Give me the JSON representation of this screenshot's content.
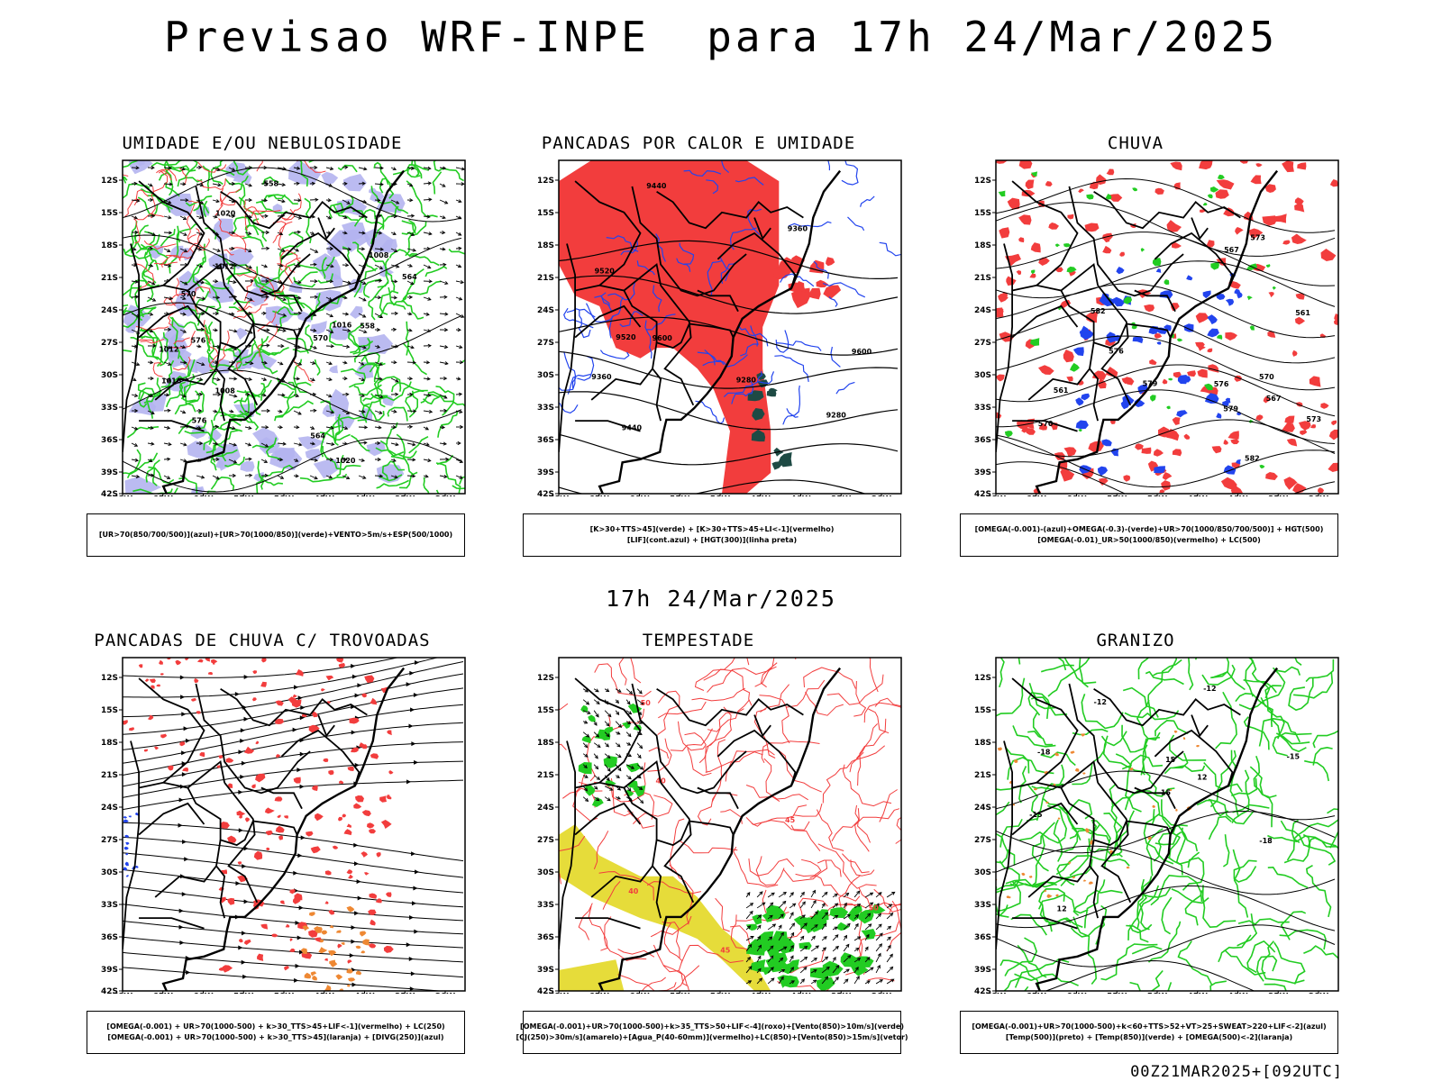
{
  "header": {
    "title": "Previsao WRF-INPE  para 17h 24/Mar/2025",
    "mid_date": "17h 24/Mar/2025",
    "run_label": "00Z21MAR2025+[092UTC]"
  },
  "axes": {
    "lat_labels": [
      "12S",
      "15S",
      "18S",
      "21S",
      "24S",
      "27S",
      "30S",
      "33S",
      "36S",
      "39S",
      "42S"
    ],
    "lon_labels": [
      "70W",
      "65W",
      "60W",
      "55W",
      "50W",
      "45W",
      "40W",
      "35W",
      "30W"
    ]
  },
  "colors": {
    "red": "#f23d3d",
    "green": "#22cc22",
    "blue": "#2244ee",
    "lavender": "#b4b4f0",
    "yellow": "#e6dc3a",
    "orange": "#ee8833",
    "darkteal": "#1e4a44",
    "purple": "#aa33cc"
  },
  "panels": [
    {
      "title": "UMIDADE E/OU NEBULOSIDADE",
      "legend": [
        "[UR>70(850/700/500)](azul)+[UR>70(1000/850)](verde)+VENTO>5m/s+ESP(500/1000)"
      ],
      "contour_labels": [
        "1008",
        "1012",
        "1016",
        "1020",
        "576",
        "570",
        "564",
        "558"
      ]
    },
    {
      "title": "PANCADAS POR CALOR E UMIDADE",
      "legend": [
        "[K>30+TTS>45](verde) + [K>30+TTS>45+LI<-1](vermelho)",
        "[LIF](cont.azul) + [HGT(300)](linha preta)"
      ],
      "contour_labels": [
        "9600",
        "9520",
        "9440",
        "9360",
        "9280"
      ]
    },
    {
      "title": "CHUVA",
      "legend": [
        "[OMEGA(-0.001)-(azul)+OMEGA(-0.3)-(verde)+UR>70(1000/850/700/500)] + HGT(500)",
        "[OMEGA(-0.01)_UR>50(1000/850)(vermelho) + LC(500)"
      ],
      "contour_labels": [
        "582",
        "579",
        "576",
        "573",
        "570",
        "567",
        "561"
      ]
    },
    {
      "title": "PANCADAS DE CHUVA C/ TROVOADAS",
      "legend": [
        "[OMEGA(-0.001) + UR>70(1000-500) + k>30_TTS>45+LIF<-1](vermelho) + LC(250)",
        "[OMEGA(-0.001) + UR>70(1000-500) + k>30_TTS>45](laranja) + [DIVG(250)](azul)"
      ],
      "contour_labels": []
    },
    {
      "title": "TEMPESTADE",
      "legend": [
        "[OMEGA(-0.001)+UR>70(1000-500)+k>35_TTS>50+LIF<-4](roxo)+[Vento(850)>10m/s](verde)",
        "[CJ(250)>30m/s](amarelo)+[Agua_P(40-60mm)](vermelho)+LC(850)+[Vento(850)>15m/s](vetor)"
      ],
      "contour_labels": [
        "40",
        "45",
        "50"
      ]
    },
    {
      "title": "GRANIZO",
      "legend": [
        "[OMEGA(-0.001)+UR>70(1000-500)+k<60+TTS>52+VT>25+SWEAT>220+LIF<-2](azul)",
        "[Temp(500)](preto) + [Temp(850)](verde) + [OMEGA(500)<-2](laranja)"
      ],
      "contour_labels": [
        "-12",
        "-15",
        "-18",
        "12",
        "15"
      ]
    }
  ]
}
